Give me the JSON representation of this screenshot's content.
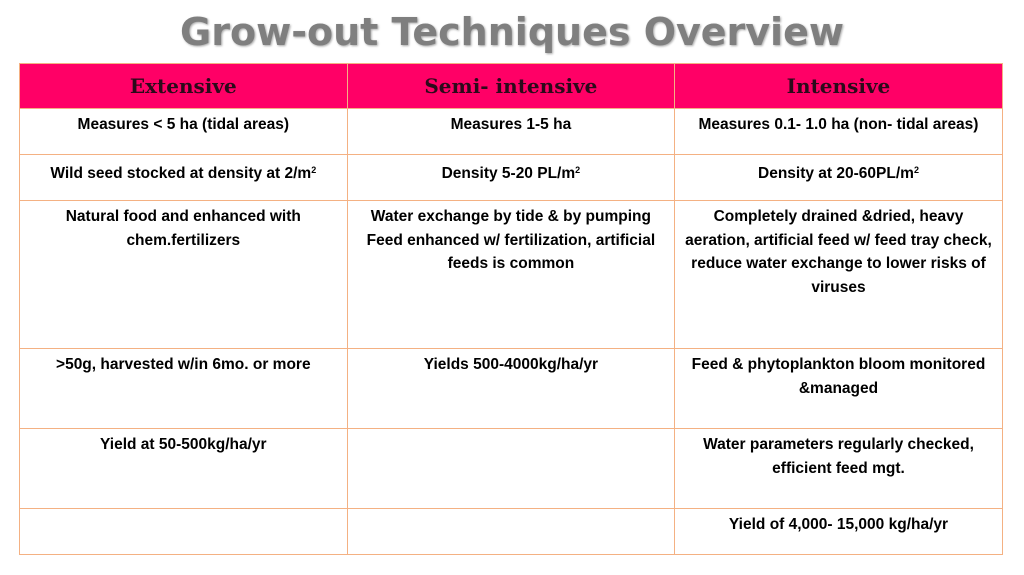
{
  "title": "Grow-out Techniques Overview",
  "columns": [
    {
      "header": "Extensive"
    },
    {
      "header": "Semi- intensive"
    },
    {
      "header": "Intensive"
    }
  ],
  "rows": [
    [
      "Measures < 5 ha (tidal areas)",
      "Measures 1-5 ha",
      "Measures 0.1- 1.0 ha (non- tidal areas)"
    ],
    [
      "Wild seed stocked at density at 2/m",
      "Density 5-20 PL/m",
      "Density at 20-60PL/m"
    ],
    [
      "Natural food and enhanced with chem.fertilizers",
      "Water exchange by tide & by pumping Feed enhanced w/ fertilization, artificial feeds is common",
      "Completely drained &dried, heavy aeration, artificial feed w/ feed tray check, reduce water exchange to lower risks of viruses"
    ],
    [
      ">50g, harvested w/in 6mo. or more",
      "Yields 500-4000kg/ha/yr",
      "Feed & phytoplankton bloom monitored &managed"
    ],
    [
      "Yield at 50-500kg/ha/yr",
      "",
      "Water parameters regularly checked, efficient feed mgt."
    ],
    [
      "",
      "",
      "Yield of 4,000- 15,000 kg/ha/yr"
    ]
  ],
  "superscript": "2",
  "colors": {
    "header_bg": "#ff0066",
    "border": "#f4b183",
    "title": "#7f7f7f"
  }
}
